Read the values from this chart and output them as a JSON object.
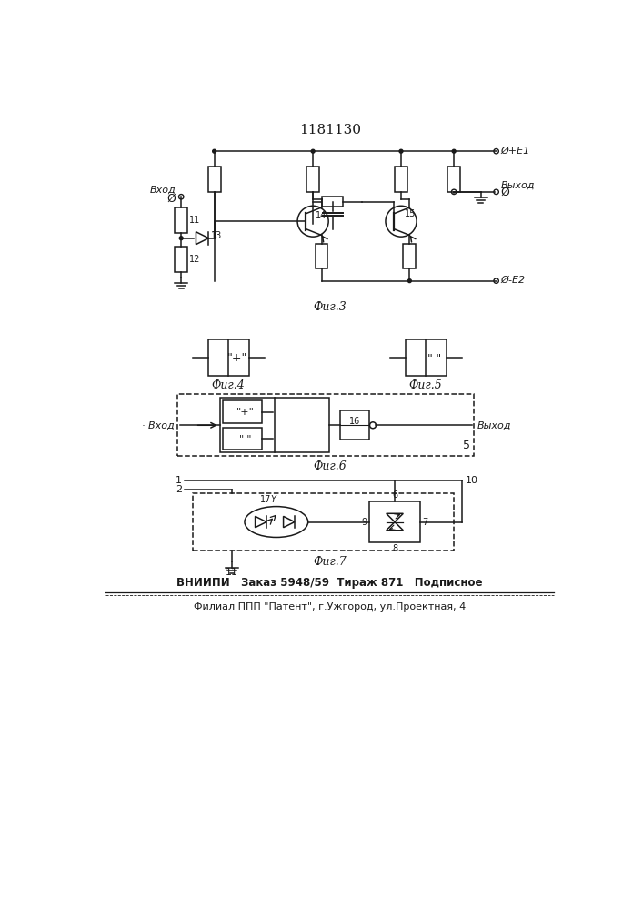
{
  "title": "1181130",
  "line_color": "#1a1a1a",
  "fig3_caption": "Фиг.3",
  "fig4_caption": "Фиг.4",
  "fig5_caption": "Фиг.5",
  "fig6_caption": "Фиг.6",
  "fig7_caption": "Фиг.7",
  "label_e1": "Ø+E1",
  "label_e2": "Ø-E2",
  "label_vhod": "Вход",
  "label_vyhod": "Выход",
  "label_plus": "\"+\"",
  "label_minus": "\"-\"",
  "label_16": "16",
  "label_5": "5",
  "label_17": "17",
  "label_Y": "Y",
  "label_1": "1",
  "label_2": "2",
  "label_10": "10",
  "label_11_gnd": "11",
  "footer1": "ВНИИПИ   Заказ 5948/59  Тираж 871   Подписное",
  "footer2": "Филиал ППП \"Патент\", г.Ужгород, ул.Проектная, 4"
}
